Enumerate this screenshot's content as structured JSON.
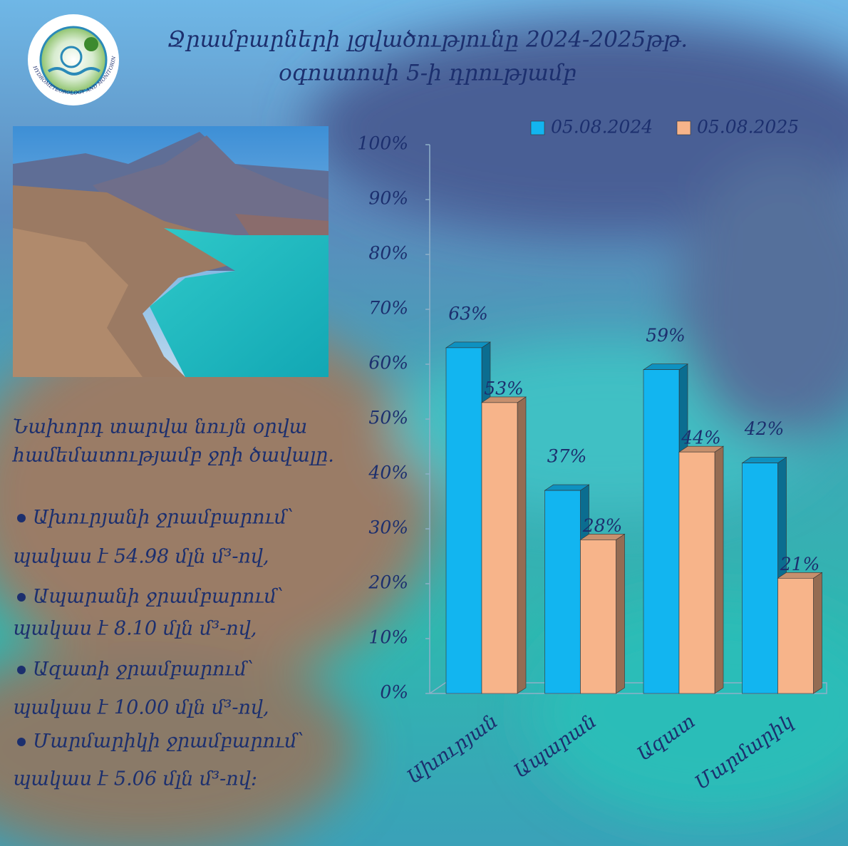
{
  "header": {
    "title_line1": "Ջրամբարների լցվածությունը 2024-2025թթ.",
    "title_line2": "օգոստոսի 5-ի դրությամբ",
    "logo_text": "HYDROMETEOROLOGY AND MONITORING CENTER"
  },
  "notes": {
    "intro_line1": "Նախորդ տարվա նույն օրվա",
    "intro_line2": "համեմատությամբ ջրի ծավալը.",
    "items": [
      {
        "name": "Ախուրյանի ջրամբարում՝",
        "change": "պակաս է 54.98 մլն մ³-ով,"
      },
      {
        "name": "Ապարանի ջրամբարում՝",
        "change": "պակաս է 8.10 մլն մ³-ով,"
      },
      {
        "name": "Ազատի ջրամբարում՝",
        "change": "պակաս է 10.00 մլն մ³-ով,"
      },
      {
        "name": "Մարմարիկի ջրամբարում՝",
        "change": "պակաս է 5.06 մլն մ³-ով:"
      }
    ]
  },
  "chart_data": {
    "type": "bar3d",
    "categories": [
      "Ախուրյան",
      "Ապարան",
      "Ազատ",
      "Մարմարիկ"
    ],
    "series": [
      {
        "name": "05.08.2024",
        "color": "#12b5f0",
        "values": [
          63,
          37,
          59,
          42
        ],
        "value_labels": [
          "63%",
          "37%",
          "59%",
          "42%"
        ]
      },
      {
        "name": "05.08.2025",
        "color": "#f7b48a",
        "values": [
          53,
          28,
          44,
          21
        ],
        "value_labels": [
          "53%",
          "28%",
          "44%",
          "21%"
        ]
      }
    ],
    "ylim": [
      0,
      100
    ],
    "yticks": [
      {
        "value": 0,
        "label": "0%"
      },
      {
        "value": 10,
        "label": "10%"
      },
      {
        "value": 20,
        "label": "20%"
      },
      {
        "value": 30,
        "label": "30%"
      },
      {
        "value": 40,
        "label": "40%"
      },
      {
        "value": 50,
        "label": "50%"
      },
      {
        "value": 60,
        "label": "60%"
      },
      {
        "value": 70,
        "label": "70%"
      },
      {
        "value": 80,
        "label": "80%"
      },
      {
        "value": 90,
        "label": "90%"
      },
      {
        "value": 100,
        "label": "100%"
      }
    ],
    "grid": false,
    "legend": "top-right"
  }
}
